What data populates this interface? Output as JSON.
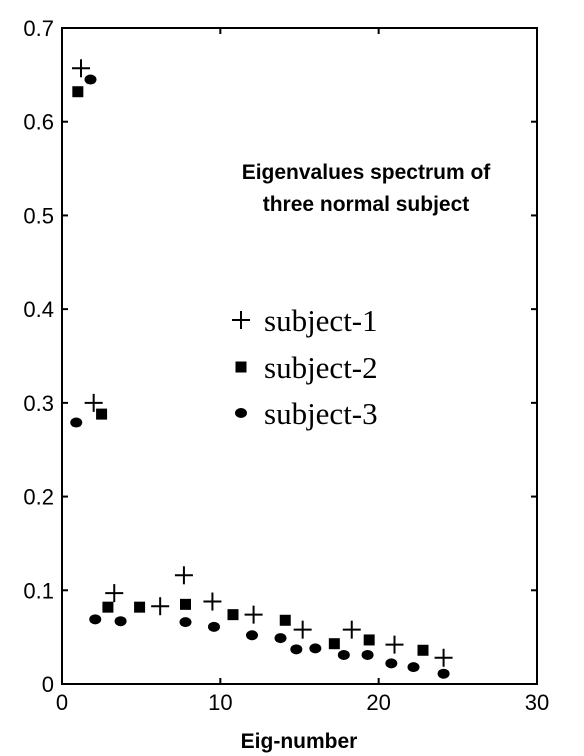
{
  "chart_data": {
    "type": "scatter",
    "title": "",
    "xlabel": "Eig-number",
    "ylabel": "",
    "xlim": [
      0,
      30
    ],
    "ylim": [
      0,
      0.7
    ],
    "x_ticks": [
      "0",
      "10",
      "20",
      "30"
    ],
    "y_ticks": [
      "0",
      "0.1",
      "0.2",
      "0.3",
      "0.4",
      "0.5",
      "0.6",
      "0.7"
    ],
    "grid": false,
    "legend_position": "center",
    "annotation": [
      "Eigenvalues spectrum of",
      "three normal subject"
    ],
    "series": [
      {
        "name": "subject-1",
        "marker": "plus",
        "color": "#000000",
        "points": [
          [
            1.2,
            0.657
          ],
          [
            2.0,
            0.3
          ],
          [
            3.3,
            0.097
          ],
          [
            6.2,
            0.083
          ],
          [
            7.7,
            0.116
          ],
          [
            9.5,
            0.088
          ],
          [
            12.1,
            0.074
          ],
          [
            15.2,
            0.058
          ],
          [
            18.3,
            0.058
          ],
          [
            21.0,
            0.042
          ],
          [
            24.1,
            0.028
          ]
        ]
      },
      {
        "name": "subject-2",
        "marker": "square",
        "color": "#000000",
        "points": [
          [
            1.0,
            0.632
          ],
          [
            2.5,
            0.288
          ],
          [
            2.9,
            0.082
          ],
          [
            4.9,
            0.082
          ],
          [
            7.8,
            0.085
          ],
          [
            10.8,
            0.074
          ],
          [
            14.1,
            0.068
          ],
          [
            17.2,
            0.043
          ],
          [
            19.4,
            0.047
          ],
          [
            22.8,
            0.036
          ]
        ]
      },
      {
        "name": "subject-3",
        "marker": "circle",
        "color": "#000000",
        "points": [
          [
            0.9,
            0.279
          ],
          [
            1.8,
            0.645
          ],
          [
            2.1,
            0.069
          ],
          [
            3.7,
            0.067
          ],
          [
            7.8,
            0.066
          ],
          [
            9.6,
            0.061
          ],
          [
            12.0,
            0.052
          ],
          [
            13.8,
            0.049
          ],
          [
            14.8,
            0.037
          ],
          [
            16.0,
            0.038
          ],
          [
            17.8,
            0.031
          ],
          [
            19.3,
            0.031
          ],
          [
            20.8,
            0.022
          ],
          [
            22.2,
            0.018
          ],
          [
            24.1,
            0.011
          ]
        ]
      }
    ]
  }
}
